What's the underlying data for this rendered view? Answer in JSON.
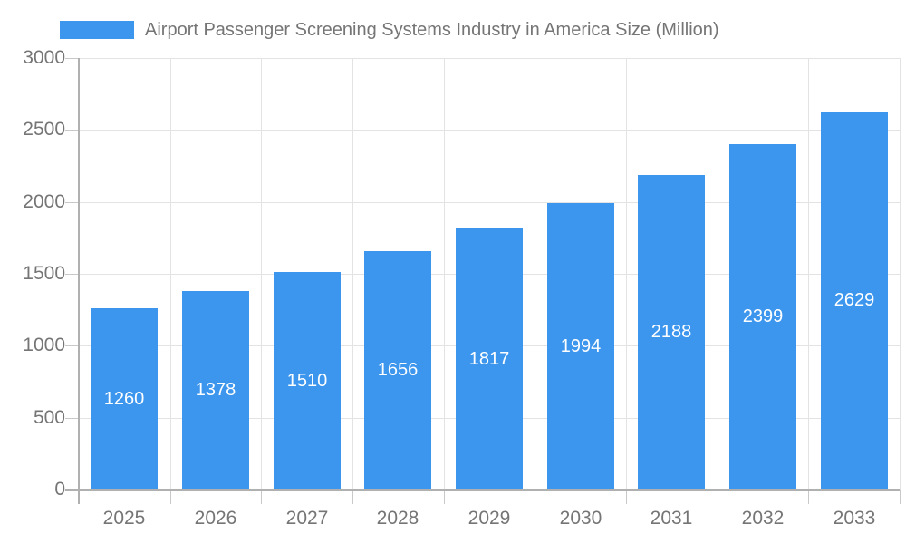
{
  "chart_data": {
    "type": "bar",
    "title": "Airport Passenger Screening Systems Industry in America Size (Million)",
    "categories": [
      "2025",
      "2026",
      "2027",
      "2028",
      "2029",
      "2030",
      "2031",
      "2032",
      "2033"
    ],
    "values": [
      1260,
      1378,
      1510,
      1656,
      1817,
      1994,
      2188,
      2399,
      2629
    ],
    "series": [
      {
        "name": "Airport Passenger Screening Systems Industry in America Size (Million)",
        "values": [
          1260,
          1378,
          1510,
          1656,
          1817,
          1994,
          2188,
          2399,
          2629
        ]
      }
    ],
    "xlabel": "",
    "ylabel": "",
    "ylim": [
      0,
      3000
    ],
    "yticks": [
      0,
      500,
      1000,
      1500,
      2000,
      2500,
      3000
    ],
    "grid": true,
    "legend_position": "top-left",
    "value_labels": "inside-center",
    "colors": {
      "bar": "#3d96ee",
      "bar_label_text": "#ffffff",
      "axis_text": "#757575",
      "gridline": "#e3e3e3",
      "axis_line": "#b0b0b0",
      "tick_mark": "#c9c9c9",
      "background": "#ffffff"
    }
  }
}
